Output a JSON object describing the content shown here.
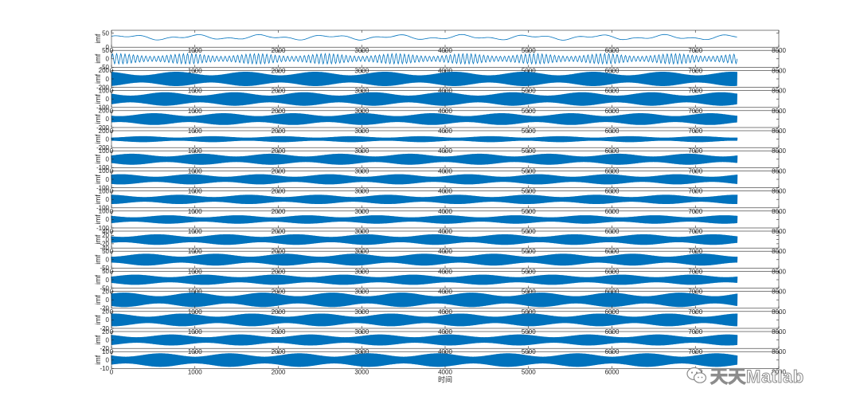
{
  "chart_data": {
    "type": "line",
    "layout": "stacked-subplots",
    "xlabel": "时间",
    "xlim": [
      0,
      8000
    ],
    "x_sample_range": [
      0,
      7500
    ],
    "xticks": [
      0,
      1000,
      2000,
      3000,
      4000,
      5000,
      6000,
      7000,
      8000
    ],
    "grid": false,
    "line_color": "#0072BD",
    "subplots": [
      {
        "ylabel": "imf",
        "ylim": [
          0,
          60
        ],
        "yticks": [
          0,
          50
        ],
        "amplitude": 10,
        "offset": 35,
        "periods": 28,
        "style": "smooth"
      },
      {
        "ylabel": "imf",
        "ylim": [
          -50,
          50
        ],
        "yticks": [
          -50,
          0,
          50
        ],
        "amplitude": 30,
        "offset": 0,
        "periods": 150,
        "style": "sine"
      },
      {
        "ylabel": "imf",
        "ylim": [
          -200,
          200
        ],
        "yticks": [
          -200,
          0,
          200
        ],
        "amplitude": 170,
        "offset": 0,
        "periods": 420,
        "style": "dense"
      },
      {
        "ylabel": "imf",
        "ylim": [
          -100,
          100
        ],
        "yticks": [
          -100,
          0,
          100
        ],
        "amplitude": 80,
        "offset": 0,
        "periods": 520,
        "style": "dense"
      },
      {
        "ylabel": "imf",
        "ylim": [
          -200,
          200
        ],
        "yticks": [
          -200,
          0,
          200
        ],
        "amplitude": 140,
        "offset": 0,
        "periods": 640,
        "style": "dense"
      },
      {
        "ylabel": "imf",
        "ylim": [
          -200,
          200
        ],
        "yticks": [
          -200,
          0,
          200
        ],
        "amplitude": 70,
        "offset": 0,
        "periods": 800,
        "style": "filled"
      },
      {
        "ylabel": "imf",
        "ylim": [
          -100,
          100
        ],
        "yticks": [
          -100,
          0,
          100
        ],
        "amplitude": 65,
        "offset": 0,
        "periods": 900,
        "style": "filled"
      },
      {
        "ylabel": "imf",
        "ylim": [
          -100,
          100
        ],
        "yticks": [
          -100,
          0,
          100
        ],
        "amplitude": 60,
        "offset": 0,
        "periods": 1000,
        "style": "filled"
      },
      {
        "ylabel": "imf",
        "ylim": [
          -100,
          100
        ],
        "yticks": [
          -100,
          0,
          100
        ],
        "amplitude": 55,
        "offset": 0,
        "periods": 1100,
        "style": "filled"
      },
      {
        "ylabel": "imf",
        "ylim": [
          -100,
          100
        ],
        "yticks": [
          -100,
          0,
          100
        ],
        "amplitude": 50,
        "offset": 0,
        "periods": 1200,
        "style": "filled"
      },
      {
        "ylabel": "imf",
        "ylim": [
          -40,
          40
        ],
        "yticks": [
          -40,
          -20,
          0,
          20,
          40
        ],
        "amplitude": 25,
        "offset": 0,
        "periods": 1300,
        "style": "filled"
      },
      {
        "ylabel": "imf",
        "ylim": [
          -50,
          50
        ],
        "yticks": [
          -50,
          0,
          50
        ],
        "amplitude": 35,
        "offset": 0,
        "periods": 1400,
        "style": "filled"
      },
      {
        "ylabel": "imf",
        "ylim": [
          -50,
          50
        ],
        "yticks": [
          -50,
          0,
          50
        ],
        "amplitude": 30,
        "offset": 0,
        "periods": 1500,
        "style": "filled"
      },
      {
        "ylabel": "imf",
        "ylim": [
          -20,
          20
        ],
        "yticks": [
          -20,
          0,
          20
        ],
        "amplitude": 17,
        "offset": 0,
        "periods": 1600,
        "style": "filled"
      },
      {
        "ylabel": "imf",
        "ylim": [
          -20,
          20
        ],
        "yticks": [
          -20,
          0,
          20
        ],
        "amplitude": 15,
        "offset": 0,
        "periods": 1700,
        "style": "filled"
      },
      {
        "ylabel": "imf",
        "ylim": [
          -20,
          20
        ],
        "yticks": [
          -20,
          0,
          20
        ],
        "amplitude": 13,
        "offset": 0,
        "periods": 1800,
        "style": "filled"
      },
      {
        "ylabel": "imf",
        "ylim": [
          -10,
          10
        ],
        "yticks": [
          -10,
          0,
          10
        ],
        "amplitude": 8,
        "offset": 0,
        "periods": 1900,
        "style": "filled"
      }
    ]
  },
  "watermark": {
    "text": "天天Matlab",
    "icon": "wechat-logo-icon"
  }
}
